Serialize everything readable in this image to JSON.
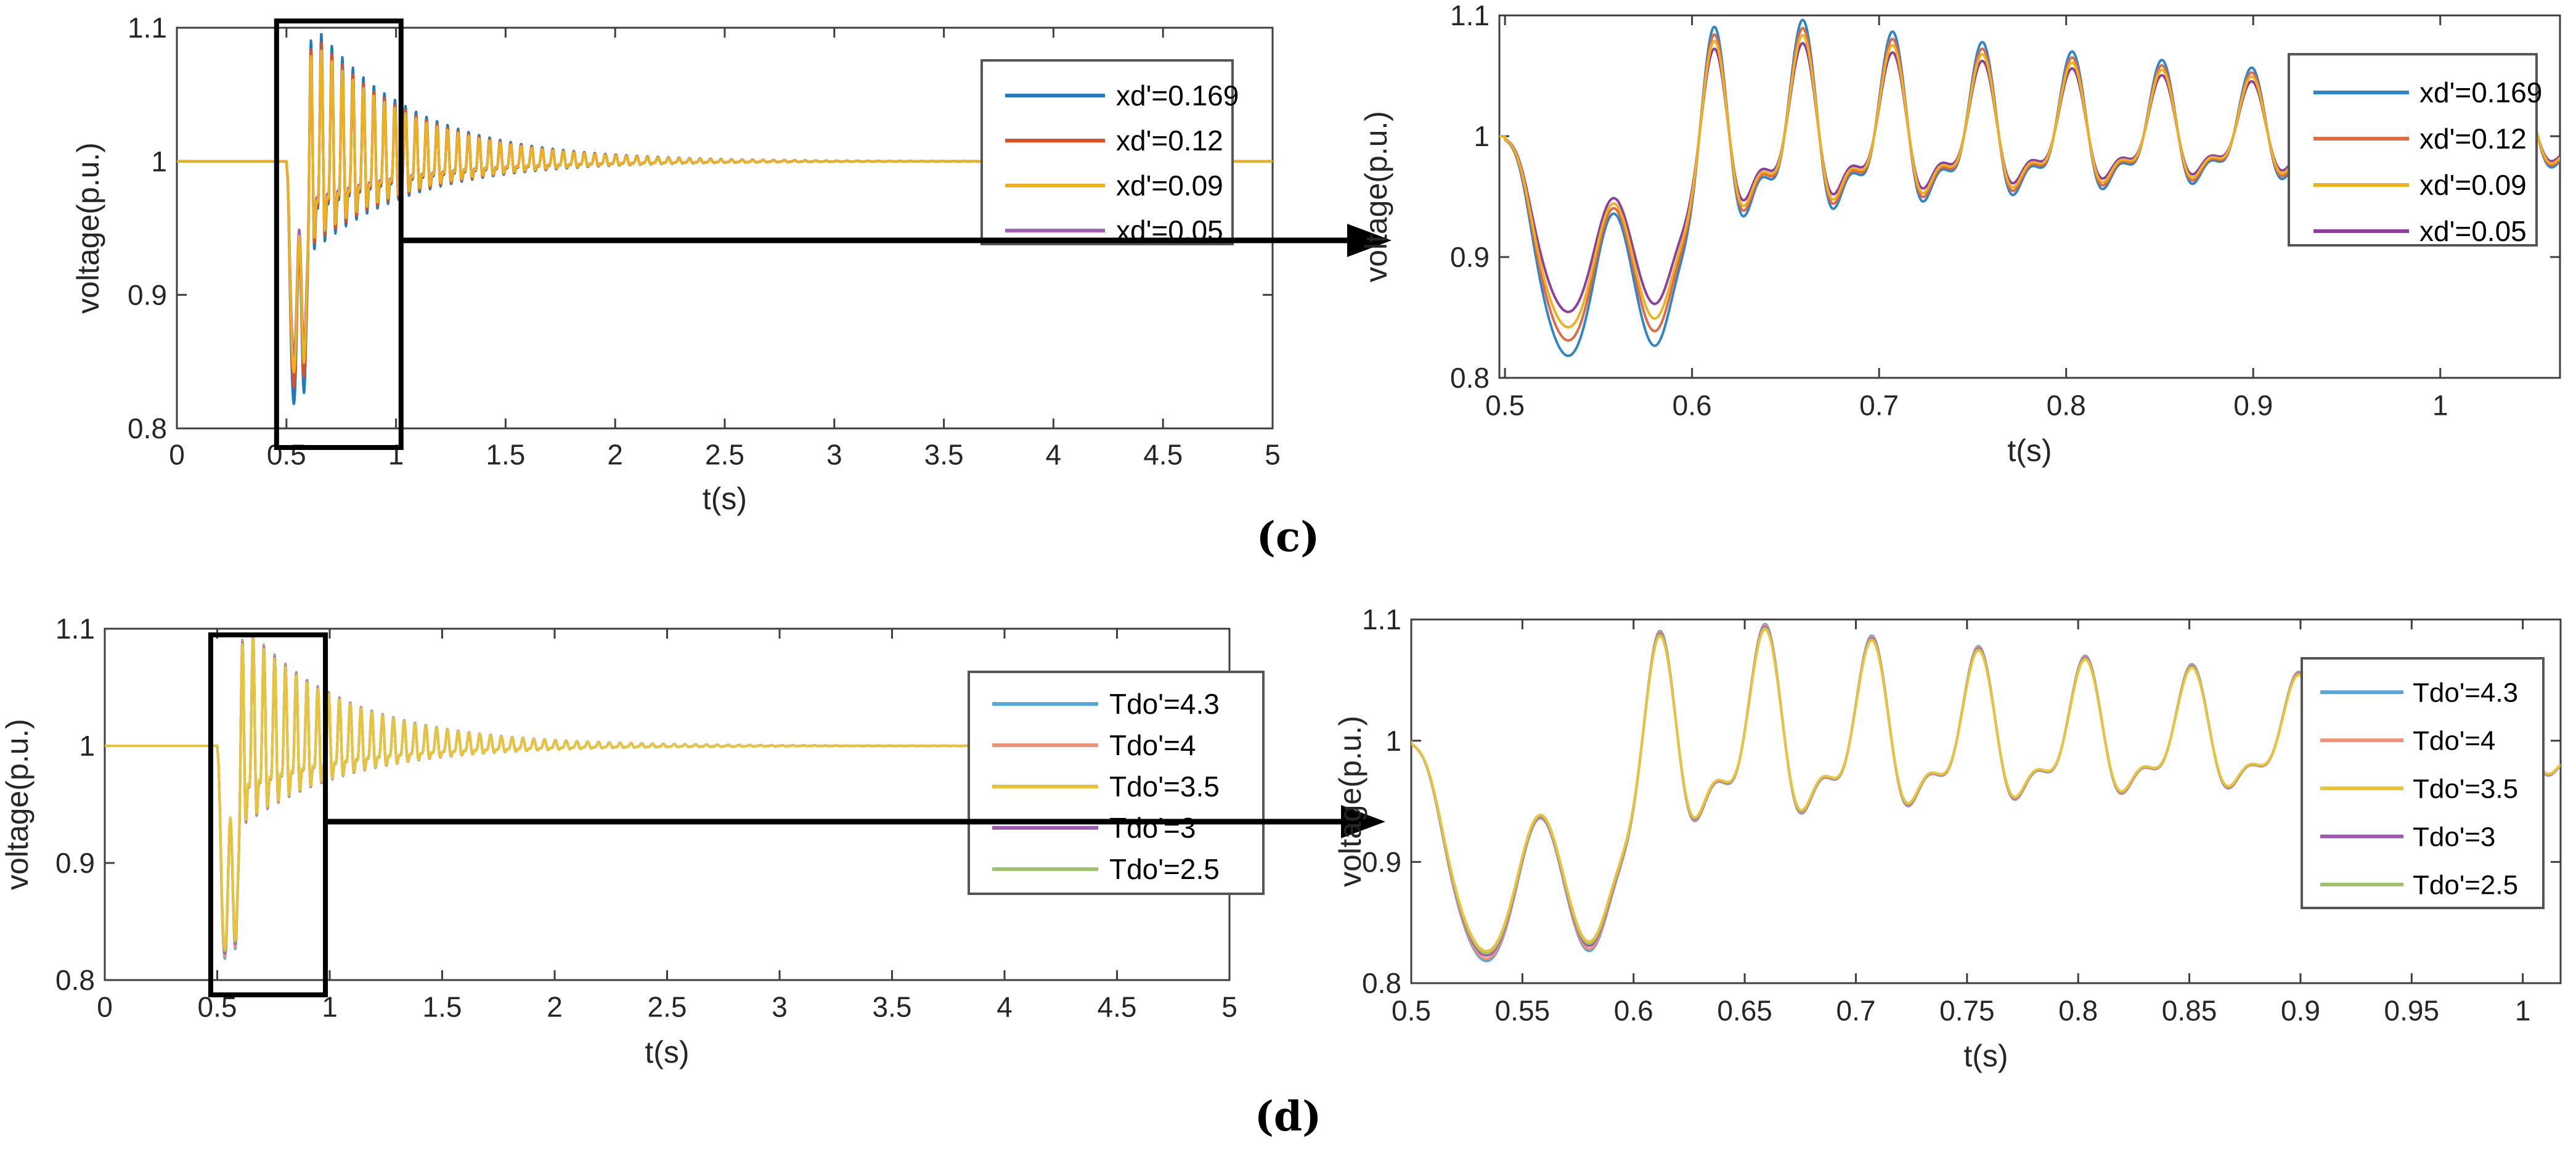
{
  "figure": {
    "background": "#ffffff",
    "captions": {
      "c": "(c)",
      "d": "(d)"
    }
  },
  "style": {
    "axis_color": "#3f3f3f",
    "tick_label_color": "#262626",
    "annotation_color": "#000000",
    "legend_border_color": "#555555",
    "legend_background": "#ffffff"
  },
  "chart_data": [
    {
      "id": "top-left",
      "type": "line",
      "role": "overview",
      "xlabel": "t(s)",
      "ylabel": "voltage(p.u.)",
      "xlim": [
        0,
        5
      ],
      "ylim": [
        0.8,
        1.1
      ],
      "xtick_values": [
        0,
        0.5,
        1,
        1.5,
        2,
        2.5,
        3,
        3.5,
        4,
        4.5,
        5
      ],
      "xtick_labels": [
        "0",
        "0.5",
        "1",
        "1.5",
        "2",
        "2.5",
        "3",
        "3.5",
        "4",
        "4.5",
        "5"
      ],
      "ytick_values": [
        0.8,
        0.9,
        1,
        1.1
      ],
      "ytick_labels": [
        "0.8",
        "0.9",
        "1",
        "1.1"
      ],
      "legend_location": "upper-right",
      "series": [
        {
          "name": "xd'=0.169",
          "color": "#1f7bc0",
          "amplitude": 1.0
        },
        {
          "name": "xd'=0.12",
          "color": "#dc5226",
          "amplitude": 0.93
        },
        {
          "name": "xd'=0.09",
          "color": "#edb120",
          "amplitude": 0.87
        },
        {
          "name": "xd'=0.05",
          "color": "#a05eb6",
          "amplitude": 0.8
        }
      ],
      "draw_order": [
        0,
        1,
        3,
        2
      ],
      "zoom_box": {
        "t_from": 0.455,
        "t_to": 1.023
      },
      "arrow_to_inset": true,
      "waveform": {
        "baseline": 1.0,
        "event_time": 0.5,
        "dip_min": 0.82,
        "overshoot_max": 1.1,
        "ring_period_s": 0.048,
        "settle_time_s": 2.5
      }
    },
    {
      "id": "top-right",
      "type": "line",
      "role": "zoomed-inset",
      "xlabel": "t(s)",
      "ylabel": "voltage(p.u.)",
      "xlim": [
        0.497,
        1.064
      ],
      "ylim": [
        0.8,
        1.1
      ],
      "xtick_values": [
        0.5,
        0.6,
        0.7,
        0.8,
        0.9,
        1
      ],
      "xtick_labels": [
        "0.5",
        "0.6",
        "0.7",
        "0.8",
        "0.9",
        "1"
      ],
      "ytick_values": [
        0.8,
        0.9,
        1,
        1.1
      ],
      "ytick_labels": [
        "0.8",
        "0.9",
        "1",
        "1.1"
      ],
      "legend_location": "upper-right",
      "series": [
        {
          "name": "xd'=0.169",
          "color": "#2e86c8",
          "amplitude": 1.0
        },
        {
          "name": "xd'=0.12",
          "color": "#e06a44",
          "amplitude": 0.93
        },
        {
          "name": "xd'=0.09",
          "color": "#edb120",
          "amplitude": 0.87
        },
        {
          "name": "xd'=0.05",
          "color": "#8e3f9e",
          "amplitude": 0.8
        }
      ],
      "draw_order": [
        0,
        1,
        3,
        2
      ],
      "zoom_box": null,
      "arrow_to_inset": false,
      "waveform": {
        "baseline": 1.0,
        "event_time": 0.5,
        "dip_min": 0.82,
        "overshoot_max": 1.1,
        "ring_period_s": 0.048,
        "settle_time_s": 2.5
      }
    },
    {
      "id": "bottom-left",
      "type": "line",
      "role": "overview",
      "xlabel": "t(s)",
      "ylabel": "voltage(p.u.)",
      "xlim": [
        0,
        5
      ],
      "ylim": [
        0.8,
        1.1
      ],
      "xtick_values": [
        0,
        0.5,
        1,
        1.5,
        2,
        2.5,
        3,
        3.5,
        4,
        4.5,
        5
      ],
      "xtick_labels": [
        "0",
        "0.5",
        "1",
        "1.5",
        "2",
        "2.5",
        "3",
        "3.5",
        "4",
        "4.5",
        "5"
      ],
      "ytick_values": [
        0.8,
        0.9,
        1,
        1.1
      ],
      "ytick_labels": [
        "0.8",
        "0.9",
        "1",
        "1.1"
      ],
      "legend_location": "upper-right",
      "series": [
        {
          "name": "Tdo'=4.3",
          "color": "#56a7db",
          "amplitude": 1.0
        },
        {
          "name": "Tdo'=4",
          "color": "#f2917a",
          "amplitude": 0.99
        },
        {
          "name": "Tdo'=3.5",
          "color": "#e8c33c",
          "amplitude": 0.955
        },
        {
          "name": "Tdo'=3",
          "color": "#a259b4",
          "amplitude": 0.975
        },
        {
          "name": "Tdo'=2.5",
          "color": "#9dc36b",
          "amplitude": 0.965
        }
      ],
      "draw_order": [
        0,
        1,
        3,
        4,
        2
      ],
      "zoom_box": {
        "t_from": 0.471,
        "t_to": 0.981
      },
      "arrow_to_inset": true,
      "waveform": {
        "baseline": 1.0,
        "event_time": 0.5,
        "dip_min": 0.82,
        "overshoot_max": 1.09,
        "ring_period_s": 0.048,
        "settle_time_s": 2.5
      }
    },
    {
      "id": "bottom-right",
      "type": "line",
      "role": "zoomed-inset",
      "xlabel": "t(s)",
      "ylabel": "voltage(p.u.)",
      "xlim": [
        0.5,
        1.017
      ],
      "ylim": [
        0.8,
        1.1
      ],
      "xtick_values": [
        0.5,
        0.55,
        0.6,
        0.65,
        0.7,
        0.75,
        0.8,
        0.85,
        0.9,
        0.95,
        1
      ],
      "xtick_labels": [
        "0.5",
        "0.55",
        "0.6",
        "0.65",
        "0.7",
        "0.75",
        "0.8",
        "0.85",
        "0.9",
        "0.95",
        "1"
      ],
      "ytick_values": [
        0.8,
        0.9,
        1,
        1.1
      ],
      "ytick_labels": [
        "0.8",
        "0.9",
        "1",
        "1.1"
      ],
      "legend_location": "upper-right",
      "series": [
        {
          "name": "Tdo'=4.3",
          "color": "#56a7db",
          "amplitude": 1.0
        },
        {
          "name": "Tdo'=4",
          "color": "#f2917a",
          "amplitude": 0.99
        },
        {
          "name": "Tdo'=3.5",
          "color": "#e8c33c",
          "amplitude": 0.955
        },
        {
          "name": "Tdo'=3",
          "color": "#a259b4",
          "amplitude": 0.975
        },
        {
          "name": "Tdo'=2.5",
          "color": "#9dc36b",
          "amplitude": 0.965
        }
      ],
      "draw_order": [
        0,
        1,
        3,
        4,
        2
      ],
      "zoom_box": null,
      "arrow_to_inset": false,
      "waveform": {
        "baseline": 1.0,
        "event_time": 0.5,
        "dip_min": 0.82,
        "overshoot_max": 1.09,
        "ring_period_s": 0.048,
        "settle_time_s": 2.5
      }
    }
  ]
}
